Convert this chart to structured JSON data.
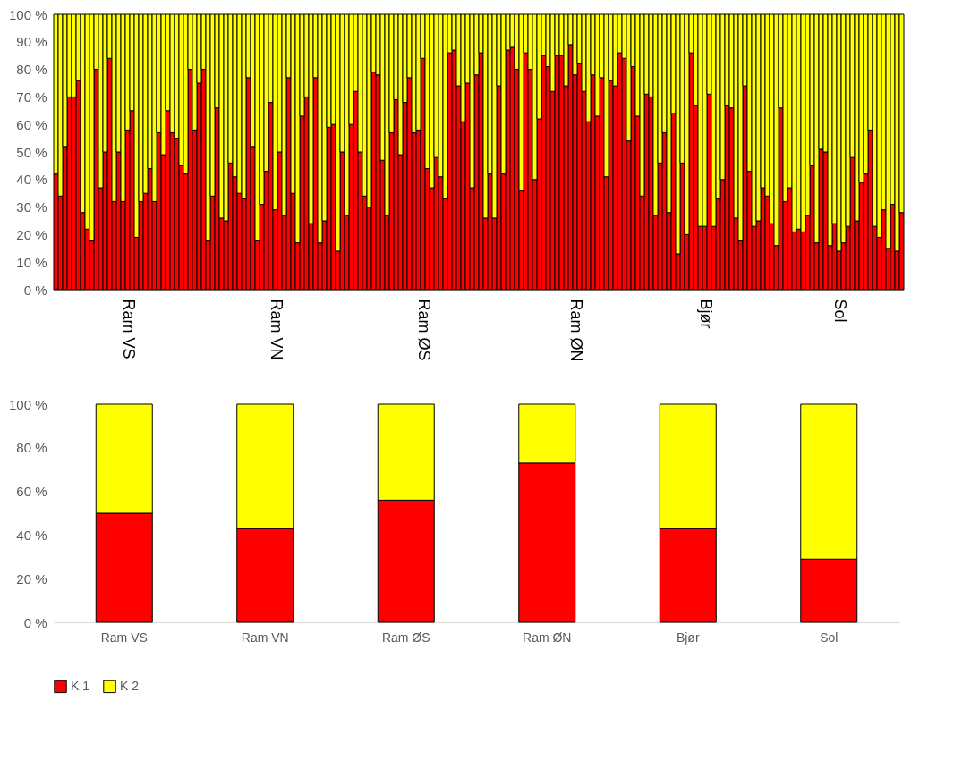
{
  "chart_data": [
    {
      "type": "bar",
      "stacked": true,
      "legend": false,
      "categories": [
        null,
        null,
        null,
        null,
        null,
        null,
        null,
        null,
        null,
        null,
        null,
        null,
        null,
        null,
        null,
        null,
        "Ram VS",
        null,
        null,
        null,
        null,
        null,
        null,
        null,
        null,
        null,
        null,
        null,
        null,
        null,
        null,
        null,
        null,
        null,
        null,
        null,
        null,
        null,
        null,
        null,
        null,
        null,
        null,
        null,
        null,
        null,
        null,
        null,
        null,
        "Ram VN",
        null,
        null,
        null,
        null,
        null,
        null,
        null,
        null,
        null,
        null,
        null,
        null,
        null,
        null,
        null,
        null,
        null,
        null,
        null,
        null,
        null,
        null,
        null,
        null,
        null,
        null,
        null,
        null,
        null,
        null,
        null,
        null,
        "Ram ØS",
        null,
        null,
        null,
        null,
        null,
        null,
        null,
        null,
        null,
        null,
        null,
        null,
        null,
        null,
        null,
        null,
        null,
        null,
        null,
        null,
        null,
        null,
        null,
        null,
        null,
        null,
        null,
        null,
        null,
        null,
        null,
        null,
        null,
        "Ram ØN",
        null,
        null,
        null,
        null,
        null,
        null,
        null,
        null,
        null,
        null,
        null,
        null,
        null,
        null,
        null,
        null,
        null,
        null,
        null,
        null,
        null,
        null,
        null,
        null,
        null,
        null,
        null,
        null,
        "Bjør",
        null,
        null,
        null,
        null,
        null,
        null,
        null,
        null,
        null,
        null,
        null,
        null,
        null,
        null,
        null,
        null,
        null,
        null,
        null,
        null,
        null,
        null,
        null,
        null,
        null,
        null,
        null,
        null,
        null,
        "Sol",
        null,
        null,
        null,
        null,
        null,
        null,
        null,
        null,
        null,
        null,
        null,
        null,
        null,
        null
      ],
      "ylim": [
        0,
        100
      ],
      "yticks": [
        {
          "value": 0,
          "label": "0 %"
        },
        {
          "value": 10,
          "label": "10 %"
        },
        {
          "value": 20,
          "label": "20 %"
        },
        {
          "value": 30,
          "label": "30 %"
        },
        {
          "value": 40,
          "label": "40 %"
        },
        {
          "value": 50,
          "label": "50 %"
        },
        {
          "value": 60,
          "label": "60 %"
        },
        {
          "value": 70,
          "label": "70 %"
        },
        {
          "value": 80,
          "label": "80 %"
        },
        {
          "value": 90,
          "label": "90 %"
        },
        {
          "value": 100,
          "label": "100 %"
        }
      ],
      "series": [
        {
          "color": "#ff0000",
          "values": [
            42,
            34,
            52,
            70,
            70,
            76,
            28,
            22,
            18,
            80,
            37,
            50,
            84,
            32,
            50,
            32,
            58,
            65,
            19,
            32,
            35,
            44,
            32,
            57,
            49,
            65,
            57,
            55,
            45,
            42,
            80,
            58,
            75,
            80,
            18,
            34,
            66,
            26,
            25,
            46,
            41,
            35,
            33,
            77,
            52,
            18,
            31,
            43,
            68,
            29,
            50,
            27,
            77,
            35,
            17,
            63,
            70,
            24,
            77,
            17,
            25,
            59,
            60,
            14,
            50,
            27,
            60,
            72,
            50,
            34,
            30,
            79,
            78,
            47,
            27,
            57,
            69,
            49,
            68,
            77,
            57,
            58,
            84,
            44,
            37,
            48,
            41,
            33,
            86,
            87,
            74,
            61,
            75,
            37,
            78,
            86,
            26,
            42,
            26,
            74,
            42,
            87,
            88,
            80,
            36,
            86,
            80,
            40,
            62,
            85,
            81,
            72,
            85,
            85,
            74,
            89,
            78,
            82,
            72,
            61,
            78,
            63,
            77,
            41,
            76,
            74,
            86,
            84,
            54,
            81,
            63,
            34,
            71,
            70,
            27,
            46,
            57,
            28,
            64,
            13,
            46,
            20,
            86,
            67,
            23,
            23,
            71,
            23,
            33,
            40,
            67,
            66,
            26,
            18,
            74,
            43,
            23,
            25,
            37,
            34,
            24,
            16,
            66,
            32,
            37,
            21,
            22,
            21,
            27,
            45,
            17,
            51,
            50,
            16,
            24,
            14,
            17,
            23,
            48,
            25,
            39,
            42,
            58,
            23,
            19,
            29,
            15,
            31,
            14,
            28
          ]
        },
        {
          "color": "#ffff00",
          "values": [
            58,
            66,
            48,
            30,
            30,
            24,
            72,
            78,
            82,
            20,
            63,
            50,
            16,
            68,
            50,
            68,
            42,
            35,
            81,
            68,
            65,
            56,
            68,
            43,
            51,
            35,
            43,
            45,
            55,
            58,
            20,
            42,
            25,
            20,
            82,
            66,
            34,
            74,
            75,
            54,
            59,
            65,
            67,
            23,
            48,
            82,
            69,
            57,
            32,
            71,
            50,
            73,
            23,
            65,
            83,
            37,
            30,
            76,
            23,
            83,
            75,
            41,
            40,
            86,
            50,
            73,
            40,
            28,
            50,
            66,
            70,
            21,
            22,
            53,
            73,
            43,
            31,
            51,
            32,
            23,
            43,
            42,
            16,
            56,
            63,
            52,
            59,
            67,
            14,
            13,
            26,
            39,
            25,
            63,
            22,
            14,
            74,
            58,
            74,
            26,
            58,
            13,
            12,
            20,
            64,
            14,
            20,
            60,
            38,
            15,
            19,
            28,
            15,
            15,
            26,
            11,
            22,
            18,
            28,
            39,
            22,
            37,
            23,
            59,
            24,
            26,
            14,
            16,
            46,
            19,
            37,
            66,
            29,
            30,
            73,
            54,
            43,
            72,
            36,
            87,
            54,
            80,
            14,
            33,
            77,
            77,
            29,
            77,
            67,
            60,
            33,
            34,
            74,
            82,
            26,
            57,
            77,
            75,
            63,
            66,
            76,
            84,
            34,
            68,
            63,
            79,
            78,
            79,
            73,
            55,
            83,
            49,
            50,
            84,
            76,
            86,
            83,
            77,
            52,
            75,
            61,
            58,
            42,
            77,
            81,
            71,
            85,
            69,
            86,
            72
          ]
        }
      ]
    },
    {
      "type": "bar",
      "stacked": true,
      "legend": "bottom",
      "categories": [
        "Ram VS",
        "Ram VN",
        "Ram ØS",
        "Ram ØN",
        "Bjør",
        "Sol"
      ],
      "ylim": [
        0,
        100
      ],
      "yticks": [
        {
          "value": 0,
          "label": "0 %"
        },
        {
          "value": 20,
          "label": "20 %"
        },
        {
          "value": 40,
          "label": "40 %"
        },
        {
          "value": 60,
          "label": "60 %"
        },
        {
          "value": 80,
          "label": "80 %"
        },
        {
          "value": 100,
          "label": "100 %"
        }
      ],
      "series": [
        {
          "name": "K 1",
          "color": "#ff0000",
          "values": [
            50,
            43,
            56,
            73,
            43,
            29
          ]
        },
        {
          "name": "K 2",
          "color": "#ffff00",
          "values": [
            50,
            57,
            44,
            27,
            57,
            71
          ]
        }
      ]
    }
  ]
}
